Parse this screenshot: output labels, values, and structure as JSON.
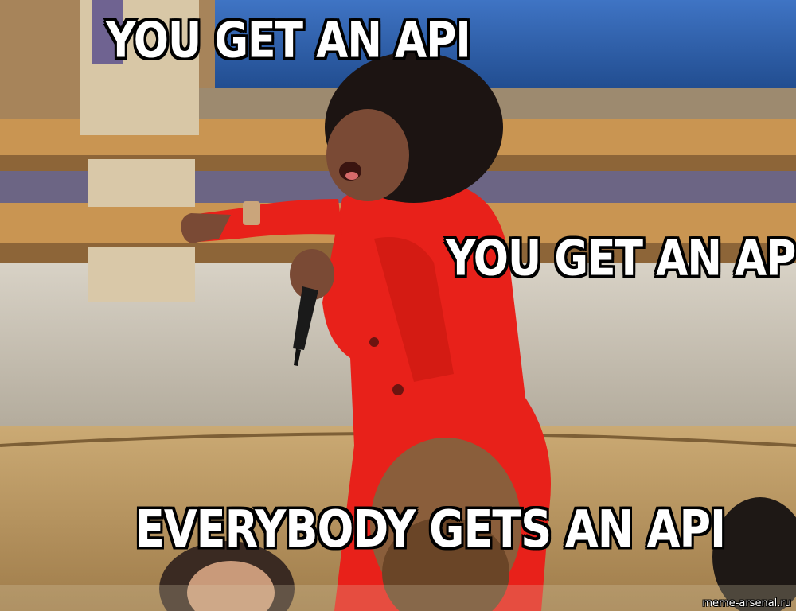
{
  "meme": {
    "captions": {
      "top": "YOU GET AN API",
      "middle": "YOU GET AN API",
      "bottom": "EVERYBODY GETS AN API"
    },
    "watermark": "meme-arsenal.ru"
  },
  "colors": {
    "dress": "#e8211a",
    "wall": "#c9c2b5",
    "floor": "#b89560",
    "screen": "#2d5fa8",
    "shelf": "#c7914e"
  }
}
